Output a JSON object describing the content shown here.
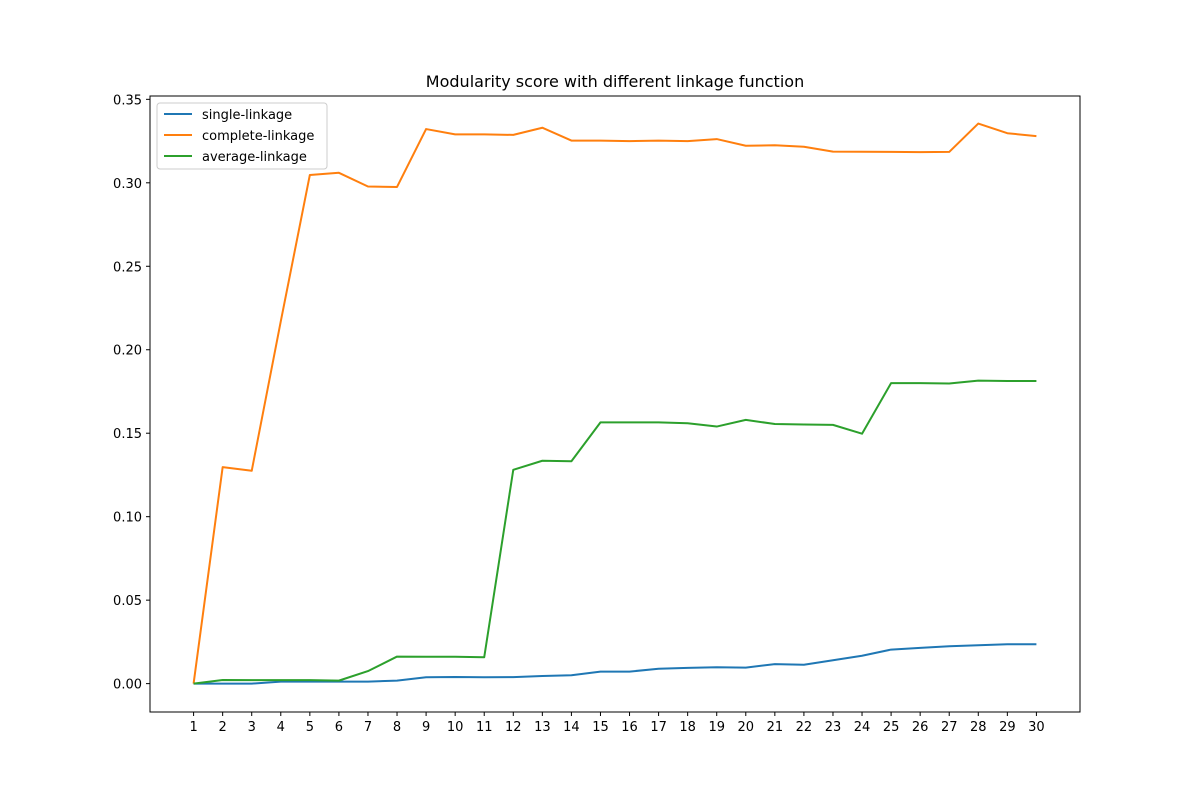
{
  "chart_data": {
    "type": "line",
    "title": "Modularity score with different linkage function",
    "xlabel": "",
    "ylabel": "",
    "x": [
      1,
      2,
      3,
      4,
      5,
      6,
      7,
      8,
      9,
      10,
      11,
      12,
      13,
      14,
      15,
      16,
      17,
      18,
      19,
      20,
      21,
      22,
      23,
      24,
      25,
      26,
      27,
      28,
      29,
      30
    ],
    "xlim": [
      -0.5,
      31.5
    ],
    "ylim": [
      -0.017,
      0.352
    ],
    "yticks": [
      "0.00",
      "0.05",
      "0.10",
      "0.15",
      "0.20",
      "0.25",
      "0.30",
      "0.35"
    ],
    "grid": false,
    "legend_position": "top-left",
    "series": [
      {
        "name": "single-linkage",
        "color": "#1f77b4",
        "values": [
          0.0,
          0.0,
          0.0,
          0.0012,
          0.0012,
          0.0012,
          0.0012,
          0.0018,
          0.0038,
          0.004,
          0.0038,
          0.0039,
          0.0046,
          0.005,
          0.0072,
          0.0072,
          0.0089,
          0.0094,
          0.0098,
          0.0096,
          0.0117,
          0.0113,
          0.014,
          0.0167,
          0.0204,
          0.0214,
          0.0224,
          0.023,
          0.0236,
          0.0236
        ]
      },
      {
        "name": "complete-linkage",
        "color": "#ff7f0e",
        "values": [
          0.0,
          0.1297,
          0.1275,
          0.217,
          0.3047,
          0.306,
          0.2978,
          0.2975,
          0.3322,
          0.329,
          0.329,
          0.3287,
          0.333,
          0.3253,
          0.3253,
          0.325,
          0.3253,
          0.325,
          0.3262,
          0.3222,
          0.3225,
          0.3216,
          0.3187,
          0.3186,
          0.3185,
          0.3184,
          0.3185,
          0.3355,
          0.3297,
          0.328
        ]
      },
      {
        "name": "average-linkage",
        "color": "#2ca02c",
        "values": [
          0.0,
          0.0022,
          0.0021,
          0.0021,
          0.0021,
          0.0018,
          0.0075,
          0.0162,
          0.0161,
          0.0161,
          0.0158,
          0.1281,
          0.1335,
          0.1332,
          0.1565,
          0.1565,
          0.1565,
          0.156,
          0.154,
          0.158,
          0.1555,
          0.1552,
          0.155,
          0.1497,
          0.18,
          0.18,
          0.1798,
          0.1815,
          0.1813,
          0.1813
        ]
      }
    ]
  }
}
